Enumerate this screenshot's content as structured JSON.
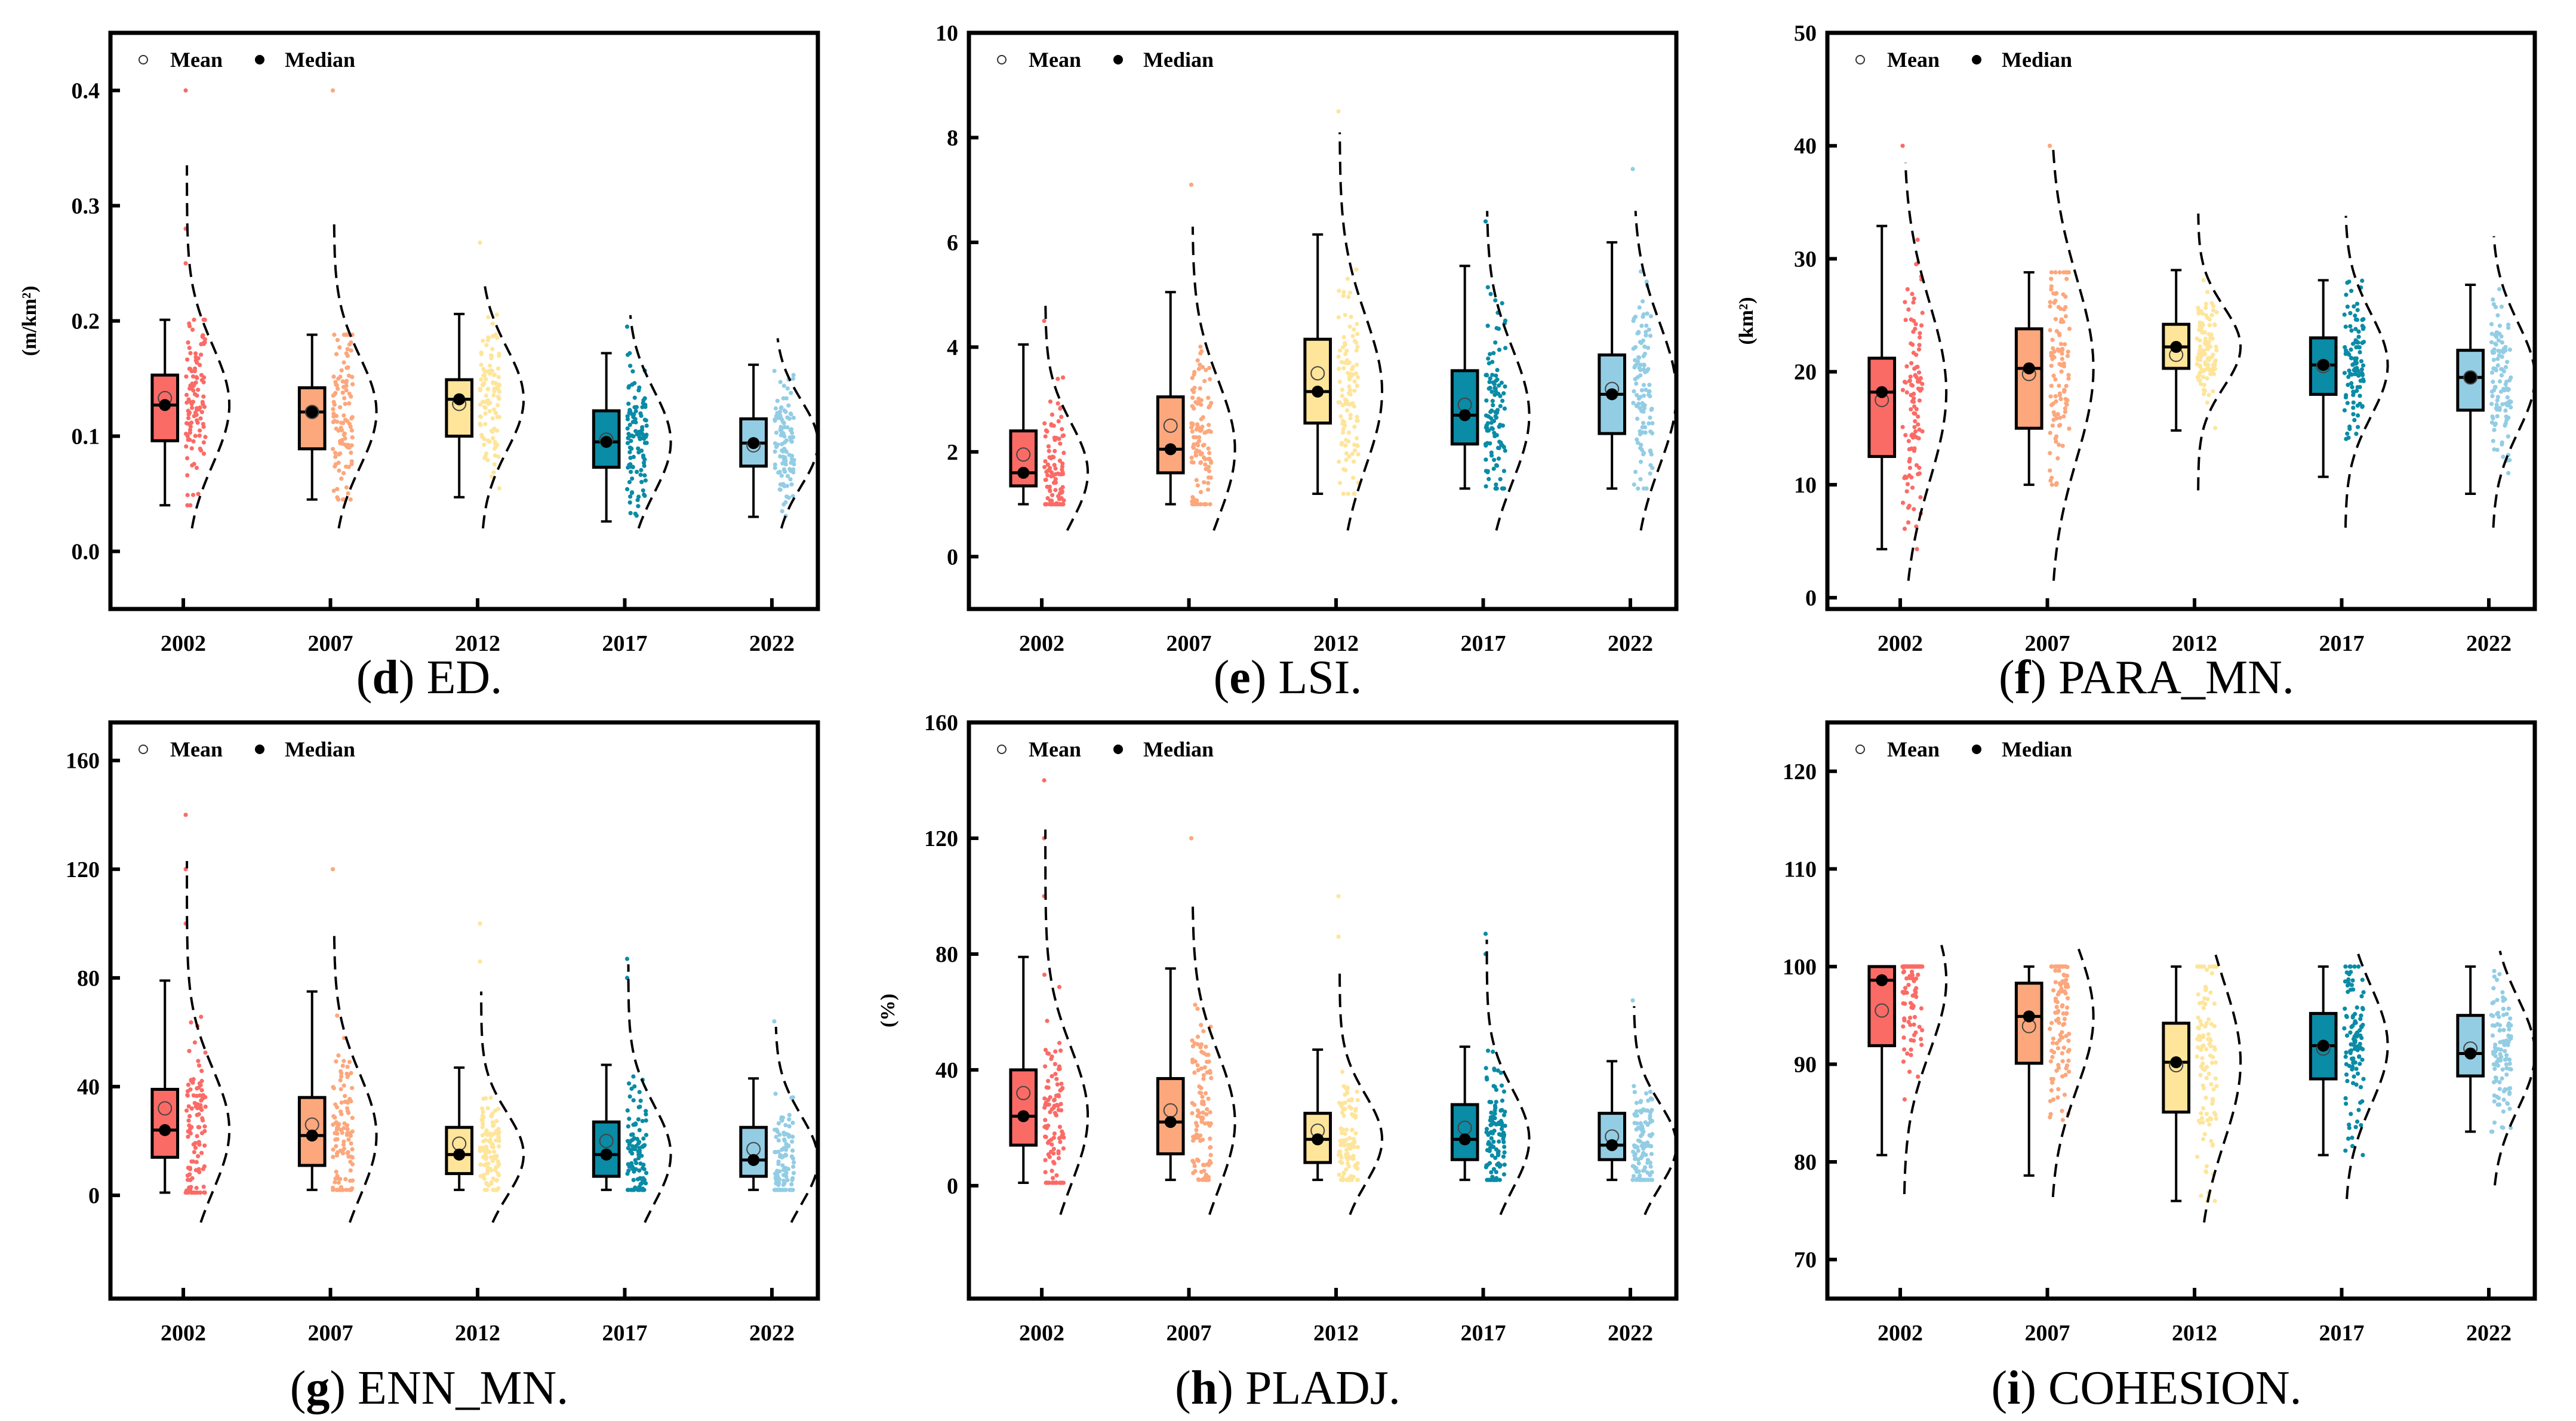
{
  "legend": {
    "mean": "Mean",
    "median": "Median"
  },
  "colors": [
    "#fb6b66",
    "#fca77c",
    "#fee59a",
    "#0a8ba6",
    "#93cde4"
  ],
  "chart_data": [
    {
      "type": "box",
      "id": "d",
      "caption": {
        "letter": "d",
        "title": "ED."
      },
      "ylabel": "(m/km²)",
      "ylim": [
        -0.05,
        0.45
      ],
      "yticks": [
        "0.0",
        "0.1",
        "0.2",
        "0.3",
        "0.4"
      ],
      "ytick_values": [
        0,
        0.1,
        0.2,
        0.3,
        0.4
      ],
      "categories": [
        "2002",
        "2007",
        "2012",
        "2017",
        "2022"
      ],
      "series": [
        {
          "min": 0.04,
          "q1": 0.096,
          "median": 0.127,
          "q3": 0.153,
          "max": 0.201,
          "mean": 0.133,
          "kde_range": [
            0.02,
            0.335
          ],
          "outliers": [
            0.25,
            0.28,
            0.4
          ]
        },
        {
          "min": 0.045,
          "q1": 0.089,
          "median": 0.121,
          "q3": 0.142,
          "max": 0.188,
          "mean": 0.121,
          "kde_range": [
            0.02,
            0.29
          ],
          "outliers": [
            0.4
          ]
        },
        {
          "min": 0.047,
          "q1": 0.1,
          "median": 0.132,
          "q3": 0.149,
          "max": 0.206,
          "mean": 0.128,
          "kde_range": [
            0.02,
            0.235
          ],
          "outliers": [
            0.268
          ]
        },
        {
          "min": 0.026,
          "q1": 0.073,
          "median": 0.095,
          "q3": 0.122,
          "max": 0.172,
          "mean": 0.097,
          "kde_range": [
            0.02,
            0.205
          ],
          "outliers": [
            0.195
          ]
        },
        {
          "min": 0.03,
          "q1": 0.074,
          "median": 0.094,
          "q3": 0.115,
          "max": 0.162,
          "mean": 0.092,
          "kde_range": [
            0.02,
            0.185
          ],
          "outliers": []
        }
      ]
    },
    {
      "type": "box",
      "id": "e",
      "caption": {
        "letter": "e",
        "title": "LSI."
      },
      "ylabel": "",
      "ylim": [
        -1,
        10
      ],
      "yticks": [
        "0",
        "2",
        "4",
        "6",
        "8",
        "10"
      ],
      "ytick_values": [
        0,
        2,
        4,
        6,
        8,
        10
      ],
      "categories": [
        "2002",
        "2007",
        "2012",
        "2017",
        "2022"
      ],
      "series": [
        {
          "min": 1.0,
          "q1": 1.35,
          "median": 1.6,
          "q3": 2.4,
          "max": 4.05,
          "mean": 1.95,
          "kde_range": [
            0.5,
            4.8
          ],
          "outliers": [
            4.5
          ]
        },
        {
          "min": 1.0,
          "q1": 1.6,
          "median": 2.05,
          "q3": 3.05,
          "max": 5.05,
          "mean": 2.5,
          "kde_range": [
            0.5,
            6.3
          ],
          "outliers": [
            7.1
          ]
        },
        {
          "min": 1.2,
          "q1": 2.55,
          "median": 3.15,
          "q3": 4.15,
          "max": 6.15,
          "mean": 3.5,
          "kde_range": [
            0.5,
            8.1
          ],
          "outliers": [
            8.5
          ]
        },
        {
          "min": 1.3,
          "q1": 2.15,
          "median": 2.7,
          "q3": 3.55,
          "max": 5.55,
          "mean": 2.9,
          "kde_range": [
            0.5,
            6.6
          ],
          "outliers": [
            6.4
          ]
        },
        {
          "min": 1.3,
          "q1": 2.35,
          "median": 3.1,
          "q3": 3.85,
          "max": 6.0,
          "mean": 3.2,
          "kde_range": [
            0.5,
            6.6
          ],
          "outliers": [
            7.4
          ]
        }
      ]
    },
    {
      "type": "box",
      "id": "f",
      "caption": {
        "letter": "f",
        "title": "PARA_MN."
      },
      "ylabel": "(km²)",
      "ylim": [
        -1,
        50
      ],
      "yticks": [
        "0",
        "10",
        "20",
        "30",
        "40",
        "50"
      ],
      "ytick_values": [
        0,
        10,
        20,
        30,
        40,
        50
      ],
      "categories": [
        "2002",
        "2007",
        "2012",
        "2017",
        "2022"
      ],
      "series": [
        {
          "min": 4.3,
          "q1": 12.5,
          "median": 18.2,
          "q3": 21.2,
          "max": 32.9,
          "mean": 17.5,
          "kde_range": [
            1.5,
            38.5
          ],
          "outliers": [
            40
          ]
        },
        {
          "min": 10,
          "q1": 15,
          "median": 20.3,
          "q3": 23.8,
          "max": 28.8,
          "mean": 19.8,
          "kde_range": [
            1.5,
            40
          ],
          "outliers": [
            40
          ]
        },
        {
          "min": 14.8,
          "q1": 20.3,
          "median": 22.2,
          "q3": 24.2,
          "max": 29,
          "mean": 21.5,
          "kde_range": [
            9.5,
            34
          ],
          "outliers": []
        },
        {
          "min": 10.7,
          "q1": 18,
          "median": 20.6,
          "q3": 23,
          "max": 28.1,
          "mean": 20.5,
          "kde_range": [
            6.2,
            33.8
          ],
          "outliers": []
        },
        {
          "min": 9.2,
          "q1": 16.6,
          "median": 19.5,
          "q3": 21.9,
          "max": 27.7,
          "mean": 19.5,
          "kde_range": [
            6.2,
            32
          ],
          "outliers": []
        }
      ]
    },
    {
      "type": "box",
      "id": "g",
      "caption": {
        "letter": "g",
        "title": "ENN_MN."
      },
      "ylabel": "",
      "ylim": [
        -38,
        174
      ],
      "yticks": [
        "0",
        "40",
        "80",
        "120",
        "160"
      ],
      "ytick_values": [
        0,
        40,
        80,
        120,
        160
      ],
      "categories": [
        "2002",
        "2007",
        "2012",
        "2017",
        "2022"
      ],
      "series": [
        {
          "min": 1,
          "q1": 14,
          "median": 24,
          "q3": 39,
          "max": 79,
          "mean": 32,
          "kde_range": [
            -10,
            123
          ],
          "outliers": [
            100,
            120,
            140
          ]
        },
        {
          "min": 2,
          "q1": 11,
          "median": 22,
          "q3": 36,
          "max": 75,
          "mean": 26,
          "kde_range": [
            -10,
            97
          ],
          "outliers": [
            120
          ]
        },
        {
          "min": 2,
          "q1": 8,
          "median": 15,
          "q3": 25,
          "max": 47,
          "mean": 19,
          "kde_range": [
            -10,
            75
          ],
          "outliers": [
            86,
            100
          ]
        },
        {
          "min": 2,
          "q1": 7,
          "median": 15,
          "q3": 27,
          "max": 48,
          "mean": 20,
          "kde_range": [
            -10,
            85
          ],
          "outliers": [
            80,
            87
          ]
        },
        {
          "min": 2,
          "q1": 7,
          "median": 13,
          "q3": 25,
          "max": 43,
          "mean": 17,
          "kde_range": [
            -10,
            62
          ],
          "outliers": [
            64
          ]
        }
      ]
    },
    {
      "type": "box",
      "id": "h",
      "caption": {
        "letter": "h",
        "title": "PLADJ."
      },
      "ylabel": "(%)",
      "ylim": [
        -39,
        160
      ],
      "yticks": [
        "0",
        "40",
        "80",
        "120",
        "160"
      ],
      "ytick_values": [
        0,
        40,
        80,
        120,
        160
      ],
      "categories": [
        "2002",
        "2007",
        "2012",
        "2017",
        "2022"
      ],
      "series": [
        {
          "min": 1,
          "q1": 14,
          "median": 24,
          "q3": 40,
          "max": 79,
          "mean": 32,
          "kde_range": [
            -10,
            123
          ],
          "outliers": [
            100,
            120,
            140
          ]
        },
        {
          "min": 2,
          "q1": 11,
          "median": 22,
          "q3": 37,
          "max": 75,
          "mean": 26,
          "kde_range": [
            -10,
            97
          ],
          "outliers": [
            120
          ]
        },
        {
          "min": 2,
          "q1": 8,
          "median": 16,
          "q3": 25,
          "max": 47,
          "mean": 19,
          "kde_range": [
            -10,
            75
          ],
          "outliers": [
            86,
            100
          ]
        },
        {
          "min": 2,
          "q1": 9,
          "median": 16,
          "q3": 28,
          "max": 48,
          "mean": 20,
          "kde_range": [
            -10,
            85
          ],
          "outliers": [
            80,
            87
          ]
        },
        {
          "min": 2,
          "q1": 9,
          "median": 14,
          "q3": 25,
          "max": 43,
          "mean": 17,
          "kde_range": [
            -10,
            62
          ],
          "outliers": [
            64
          ]
        }
      ]
    },
    {
      "type": "box",
      "id": "i",
      "caption": {
        "letter": "i",
        "title": "COHESION."
      },
      "ylabel": "",
      "ylim": [
        66,
        125
      ],
      "yticks": [
        "70",
        "80",
        "90",
        "100",
        "110",
        "120"
      ],
      "ytick_values": [
        70,
        80,
        90,
        100,
        110,
        120
      ],
      "categories": [
        "2002",
        "2007",
        "2012",
        "2017",
        "2022"
      ],
      "series": [
        {
          "min": 80.7,
          "q1": 91.9,
          "median": 98.6,
          "q3": 100,
          "max": 100,
          "mean": 95.5,
          "kde_range": [
            76.7,
            102.2
          ],
          "outliers": []
        },
        {
          "min": 78.6,
          "q1": 90.1,
          "median": 94.9,
          "q3": 98.3,
          "max": 100,
          "mean": 93.9,
          "kde_range": [
            76.4,
            101.8
          ],
          "outliers": []
        },
        {
          "min": 76,
          "q1": 85.1,
          "median": 90.2,
          "q3": 94.2,
          "max": 100,
          "mean": 89.9,
          "kde_range": [
            73.8,
            101.2
          ],
          "outliers": []
        },
        {
          "min": 80.7,
          "q1": 88.5,
          "median": 91.9,
          "q3": 95.2,
          "max": 100,
          "mean": 91.6,
          "kde_range": [
            76.2,
            101.8
          ],
          "outliers": []
        },
        {
          "min": 83.1,
          "q1": 88.8,
          "median": 91.1,
          "q3": 95,
          "max": 100,
          "mean": 91.6,
          "kde_range": [
            77.6,
            101.6
          ],
          "outliers": []
        }
      ]
    }
  ]
}
